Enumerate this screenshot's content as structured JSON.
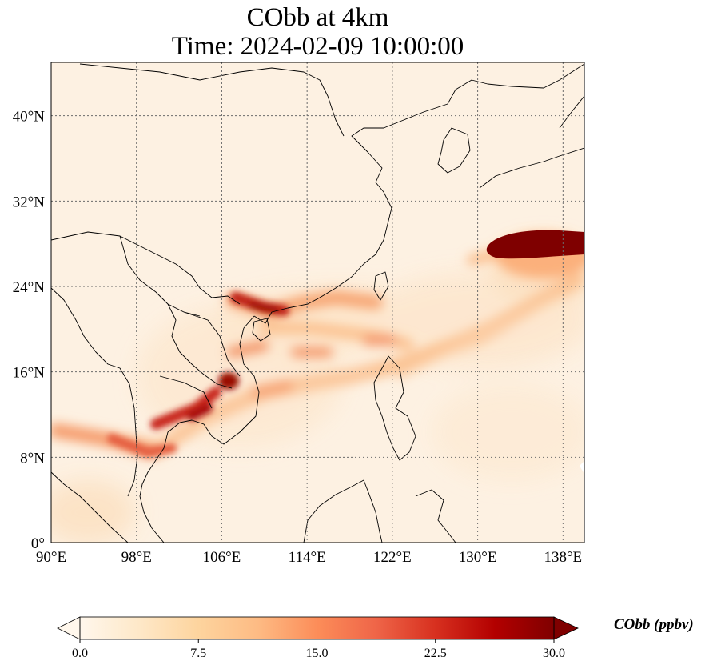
{
  "figure": {
    "title_line1": "CObb at 4km",
    "title_line2": "Time: 2024-02-09 10:00:00"
  },
  "map": {
    "projection": "PlateCarree",
    "extent_lon": [
      90,
      140
    ],
    "extent_lat": [
      0,
      45
    ],
    "gridlines": "dotted",
    "lon_ticks": [
      {
        "value": 90,
        "label": "90°E"
      },
      {
        "value": 98,
        "label": "98°E"
      },
      {
        "value": 106,
        "label": "106°E"
      },
      {
        "value": 114,
        "label": "114°E"
      },
      {
        "value": 122,
        "label": "122°E"
      },
      {
        "value": 130,
        "label": "130°E"
      },
      {
        "value": 138,
        "label": "138°E"
      }
    ],
    "lat_ticks": [
      {
        "value": 0,
        "label": "0°"
      },
      {
        "value": 8,
        "label": "8°N"
      },
      {
        "value": 16,
        "label": "16°N"
      },
      {
        "value": 24,
        "label": "24°N"
      },
      {
        "value": 32,
        "label": "32°N"
      },
      {
        "value": 40,
        "label": "40°N"
      }
    ],
    "features": [
      "coastlines",
      "country borders"
    ],
    "plumes": [
      {
        "region": "Southeast Asia interior / Cambodia",
        "peak_ppbv": 30
      },
      {
        "region": "Northern Vietnam / Gulf of Tonkin",
        "peak_ppbv": 24
      },
      {
        "region": "South of Japan",
        "peak_ppbv": 30
      }
    ]
  },
  "colorbar": {
    "label": "CObb (ppbv)",
    "cmap": "OrRd",
    "colors": [
      "#fff7ec",
      "#fee8c8",
      "#fdd49e",
      "#fdbb84",
      "#fc8d59",
      "#ef6548",
      "#d7301f",
      "#b30000",
      "#7f0000"
    ],
    "range": [
      0,
      30
    ],
    "extend": "both",
    "ticks": [
      {
        "value": 0,
        "label": "0.0"
      },
      {
        "value": 7.5,
        "label": "7.5"
      },
      {
        "value": 15,
        "label": "15.0"
      },
      {
        "value": 22.5,
        "label": "22.5"
      },
      {
        "value": 30,
        "label": "30.0"
      }
    ]
  }
}
